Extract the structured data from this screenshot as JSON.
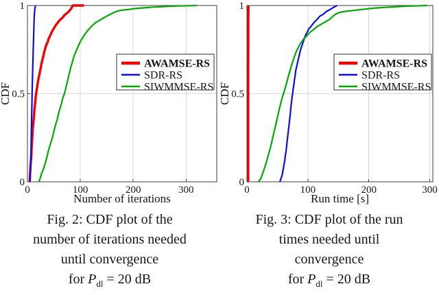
{
  "page": {
    "background": "#ffffff"
  },
  "colors": {
    "awamse_red": "#ee0000",
    "sdr_blue": "#0b0be8",
    "siwmmse_green": "#00a800",
    "grid": "#d8d8d8",
    "frame": "#3c3c3c",
    "text": "#151515"
  },
  "figures": [
    {
      "caption": {
        "line1": "Fig. 2: CDF plot of the",
        "line2": "number of iterations needed",
        "line3": "until convergence",
        "line4_prefix": "for ",
        "line4_symbol": "P",
        "line4_subscript": "dl",
        "line4_suffix": " = 20 dB"
      }
    },
    {
      "caption": {
        "line1": "Fig. 3: CDF plot of the run",
        "line2": "times needed until",
        "line3": "convergence",
        "line4_prefix": "for ",
        "line4_symbol": "P",
        "line4_subscript": "dl",
        "line4_suffix": " = 20 dB"
      }
    }
  ],
  "chart_data": [
    {
      "id": "fig2",
      "type": "line",
      "title": "",
      "xlabel": "Number of iterations",
      "ylabel": "CDF",
      "xlim": [
        0,
        358
      ],
      "ylim": [
        0,
        1
      ],
      "xticks": [
        0,
        100,
        200,
        300
      ],
      "yticks": [
        0,
        0.5,
        1
      ],
      "ytick_labels": [
        "0",
        "0.5",
        "1"
      ],
      "grid": true,
      "legend_position": "right-center",
      "series": [
        {
          "name": "AWAMSE-RS",
          "color": "#ee0000",
          "width": 3.4,
          "legend_width": 4.5,
          "bold_legend": true,
          "points": [
            [
              4,
              0
            ],
            [
              4.5,
              0.02
            ],
            [
              5,
              0.05
            ],
            [
              5.5,
              0.07
            ],
            [
              6,
              0.1
            ],
            [
              7,
              0.13
            ],
            [
              7.5,
              0.16
            ],
            [
              8,
              0.2
            ],
            [
              9,
              0.24
            ],
            [
              9.5,
              0.27
            ],
            [
              10,
              0.3
            ],
            [
              11,
              0.33
            ],
            [
              12,
              0.36
            ],
            [
              13,
              0.4
            ],
            [
              14,
              0.43
            ],
            [
              15,
              0.46
            ],
            [
              16,
              0.49
            ],
            [
              17,
              0.51
            ],
            [
              18,
              0.53
            ],
            [
              19,
              0.55
            ],
            [
              20,
              0.57
            ],
            [
              22,
              0.6
            ],
            [
              24,
              0.63
            ],
            [
              26,
              0.66
            ],
            [
              28,
              0.69
            ],
            [
              30,
              0.71
            ],
            [
              32,
              0.74
            ],
            [
              34,
              0.76
            ],
            [
              36,
              0.78
            ],
            [
              38,
              0.79
            ],
            [
              40,
              0.81
            ],
            [
              43,
              0.83
            ],
            [
              46,
              0.85
            ],
            [
              50,
              0.87
            ],
            [
              54,
              0.89
            ],
            [
              58,
              0.905
            ],
            [
              62,
              0.92
            ],
            [
              66,
              0.93
            ],
            [
              70,
              0.945
            ],
            [
              74,
              0.955
            ],
            [
              78,
              0.965
            ],
            [
              81,
              0.975
            ],
            [
              84,
              0.99
            ],
            [
              86,
              1.0
            ],
            [
              107,
              1.0
            ]
          ]
        },
        {
          "name": "SDR-RS",
          "color": "#0b0be8",
          "width": 2.2,
          "legend_width": 2.4,
          "bold_legend": false,
          "points": [
            [
              5,
              0
            ],
            [
              5.5,
              0.04
            ],
            [
              6,
              0.09
            ],
            [
              6.5,
              0.15
            ],
            [
              7,
              0.22
            ],
            [
              7.5,
              0.3
            ],
            [
              8,
              0.38
            ],
            [
              8.5,
              0.45
            ],
            [
              9,
              0.52
            ],
            [
              9.5,
              0.58
            ],
            [
              10,
              0.64
            ],
            [
              10.5,
              0.7
            ],
            [
              11,
              0.76
            ],
            [
              11.5,
              0.81
            ],
            [
              12,
              0.86
            ],
            [
              12.5,
              0.9
            ],
            [
              13,
              0.94
            ],
            [
              13.5,
              0.965
            ],
            [
              14,
              0.98
            ],
            [
              14.5,
              0.99
            ],
            [
              15,
              1.0
            ]
          ]
        },
        {
          "name": "SIWMMSE-RS",
          "color": "#00a800",
          "width": 2.2,
          "legend_width": 2.4,
          "bold_legend": false,
          "points": [
            [
              21,
              0
            ],
            [
              23,
              0.01
            ],
            [
              25,
              0.03
            ],
            [
              27,
              0.05
            ],
            [
              30,
              0.07
            ],
            [
              32,
              0.09
            ],
            [
              34,
              0.11
            ],
            [
              36,
              0.13
            ],
            [
              38,
              0.155
            ],
            [
              40,
              0.18
            ],
            [
              42,
              0.2
            ],
            [
              44,
              0.22
            ],
            [
              46,
              0.24
            ],
            [
              48,
              0.26
            ],
            [
              50,
              0.285
            ],
            [
              52,
              0.31
            ],
            [
              54,
              0.33
            ],
            [
              56,
              0.35
            ],
            [
              58,
              0.375
            ],
            [
              60,
              0.4
            ],
            [
              62,
              0.42
            ],
            [
              64,
              0.44
            ],
            [
              66,
              0.465
            ],
            [
              68,
              0.485
            ],
            [
              70,
              0.5
            ],
            [
              72,
              0.525
            ],
            [
              74,
              0.55
            ],
            [
              76,
              0.575
            ],
            [
              78,
              0.6
            ],
            [
              80,
              0.625
            ],
            [
              82,
              0.65
            ],
            [
              84,
              0.67
            ],
            [
              86,
              0.69
            ],
            [
              88,
              0.71
            ],
            [
              91,
              0.735
            ],
            [
              94,
              0.755
            ],
            [
              97,
              0.775
            ],
            [
              100,
              0.795
            ],
            [
              104,
              0.815
            ],
            [
              108,
              0.835
            ],
            [
              112,
              0.85
            ],
            [
              116,
              0.865
            ],
            [
              120,
              0.878
            ],
            [
              125,
              0.893
            ],
            [
              130,
              0.905
            ],
            [
              136,
              0.915
            ],
            [
              142,
              0.926
            ],
            [
              148,
              0.936
            ],
            [
              154,
              0.946
            ],
            [
              160,
              0.955
            ],
            [
              166,
              0.963
            ],
            [
              170,
              0.968
            ],
            [
              176,
              0.972
            ],
            [
              184,
              0.975
            ],
            [
              192,
              0.978
            ],
            [
              202,
              0.982
            ],
            [
              212,
              0.985
            ],
            [
              225,
              0.988
            ],
            [
              238,
              0.991
            ],
            [
              252,
              0.993
            ],
            [
              266,
              0.995
            ],
            [
              280,
              0.997
            ],
            [
              295,
              0.998
            ],
            [
              308,
              0.999
            ],
            [
              320,
              1.0
            ]
          ]
        }
      ]
    },
    {
      "id": "fig3",
      "type": "line",
      "title": "",
      "xlabel": "Run time [s]",
      "ylabel": "CDF",
      "xlim": [
        0,
        305
      ],
      "ylim": [
        0,
        1
      ],
      "xticks": [
        0,
        100,
        200,
        300
      ],
      "yticks": [
        0,
        0.5,
        1
      ],
      "ytick_labels": [
        "0",
        "0.5",
        "1"
      ],
      "grid": true,
      "legend_position": "right-center",
      "series": [
        {
          "name": "AWAMSE-RS",
          "color": "#ee0000",
          "width": 3.4,
          "legend_width": 4.5,
          "bold_legend": true,
          "points": [
            [
              2,
              0
            ],
            [
              2,
              0.5
            ],
            [
              2.3,
              0.9
            ],
            [
              2.5,
              1.0
            ]
          ]
        },
        {
          "name": "SDR-RS",
          "color": "#0b0be8",
          "width": 2.2,
          "legend_width": 2.4,
          "bold_legend": false,
          "points": [
            [
              54,
              0
            ],
            [
              56,
              0.02
            ],
            [
              58,
              0.04
            ],
            [
              59,
              0.06
            ],
            [
              60,
              0.08
            ],
            [
              61,
              0.1
            ],
            [
              62,
              0.12
            ],
            [
              63,
              0.15
            ],
            [
              64,
              0.17
            ],
            [
              65,
              0.2
            ],
            [
              66,
              0.23
            ],
            [
              67,
              0.26
            ],
            [
              68,
              0.29
            ],
            [
              69,
              0.32
            ],
            [
              70,
              0.35
            ],
            [
              71,
              0.38
            ],
            [
              72,
              0.42
            ],
            [
              73,
              0.45
            ],
            [
              74,
              0.48
            ],
            [
              75,
              0.5
            ],
            [
              76,
              0.53
            ],
            [
              77,
              0.55
            ],
            [
              78,
              0.58
            ],
            [
              79,
              0.6
            ],
            [
              80,
              0.63
            ],
            [
              82,
              0.66
            ],
            [
              84,
              0.69
            ],
            [
              86,
              0.72
            ],
            [
              88,
              0.75
            ],
            [
              90,
              0.77
            ],
            [
              92,
              0.79
            ],
            [
              94,
              0.81
            ],
            [
              96,
              0.83
            ],
            [
              99,
              0.85
            ],
            [
              102,
              0.87
            ],
            [
              105,
              0.88
            ],
            [
              108,
              0.895
            ],
            [
              112,
              0.91
            ],
            [
              116,
              0.925
            ],
            [
              120,
              0.94
            ],
            [
              125,
              0.95
            ],
            [
              130,
              0.965
            ],
            [
              135,
              0.975
            ],
            [
              140,
              0.985
            ],
            [
              144,
              0.993
            ],
            [
              148,
              1.0
            ]
          ]
        },
        {
          "name": "SIWMMSE-RS",
          "color": "#00a800",
          "width": 2.2,
          "legend_width": 2.4,
          "bold_legend": false,
          "points": [
            [
              19,
              0
            ],
            [
              21,
              0.01
            ],
            [
              23,
              0.02
            ],
            [
              25,
              0.04
            ],
            [
              27,
              0.06
            ],
            [
              29,
              0.08
            ],
            [
              31,
              0.1
            ],
            [
              33,
              0.125
            ],
            [
              35,
              0.15
            ],
            [
              37,
              0.175
            ],
            [
              39,
              0.2
            ],
            [
              41,
              0.23
            ],
            [
              43,
              0.26
            ],
            [
              45,
              0.29
            ],
            [
              47,
              0.32
            ],
            [
              49,
              0.35
            ],
            [
              51,
              0.38
            ],
            [
              53,
              0.41
            ],
            [
              55,
              0.44
            ],
            [
              57,
              0.465
            ],
            [
              59,
              0.49
            ],
            [
              61,
              0.51
            ],
            [
              63,
              0.535
            ],
            [
              65,
              0.56
            ],
            [
              67,
              0.585
            ],
            [
              69,
              0.61
            ],
            [
              71,
              0.635
            ],
            [
              73,
              0.66
            ],
            [
              75,
              0.68
            ],
            [
              77,
              0.7
            ],
            [
              79,
              0.72
            ],
            [
              81,
              0.74
            ],
            [
              84,
              0.76
            ],
            [
              87,
              0.78
            ],
            [
              90,
              0.795
            ],
            [
              93,
              0.81
            ],
            [
              96,
              0.82
            ],
            [
              100,
              0.835
            ],
            [
              104,
              0.85
            ],
            [
              108,
              0.86
            ],
            [
              112,
              0.872
            ],
            [
              116,
              0.882
            ],
            [
              120,
              0.89
            ],
            [
              125,
              0.9
            ],
            [
              130,
              0.91
            ],
            [
              135,
              0.92
            ],
            [
              140,
              0.935
            ],
            [
              145,
              0.95
            ],
            [
              150,
              0.958
            ],
            [
              155,
              0.963
            ],
            [
              162,
              0.967
            ],
            [
              170,
              0.97
            ],
            [
              180,
              0.974
            ],
            [
              190,
              0.978
            ],
            [
              200,
              0.982
            ],
            [
              212,
              0.986
            ],
            [
              225,
              0.989
            ],
            [
              240,
              0.992
            ],
            [
              255,
              0.995
            ],
            [
              270,
              0.997
            ],
            [
              285,
              0.999
            ],
            [
              296,
              1.0
            ]
          ]
        }
      ]
    }
  ]
}
